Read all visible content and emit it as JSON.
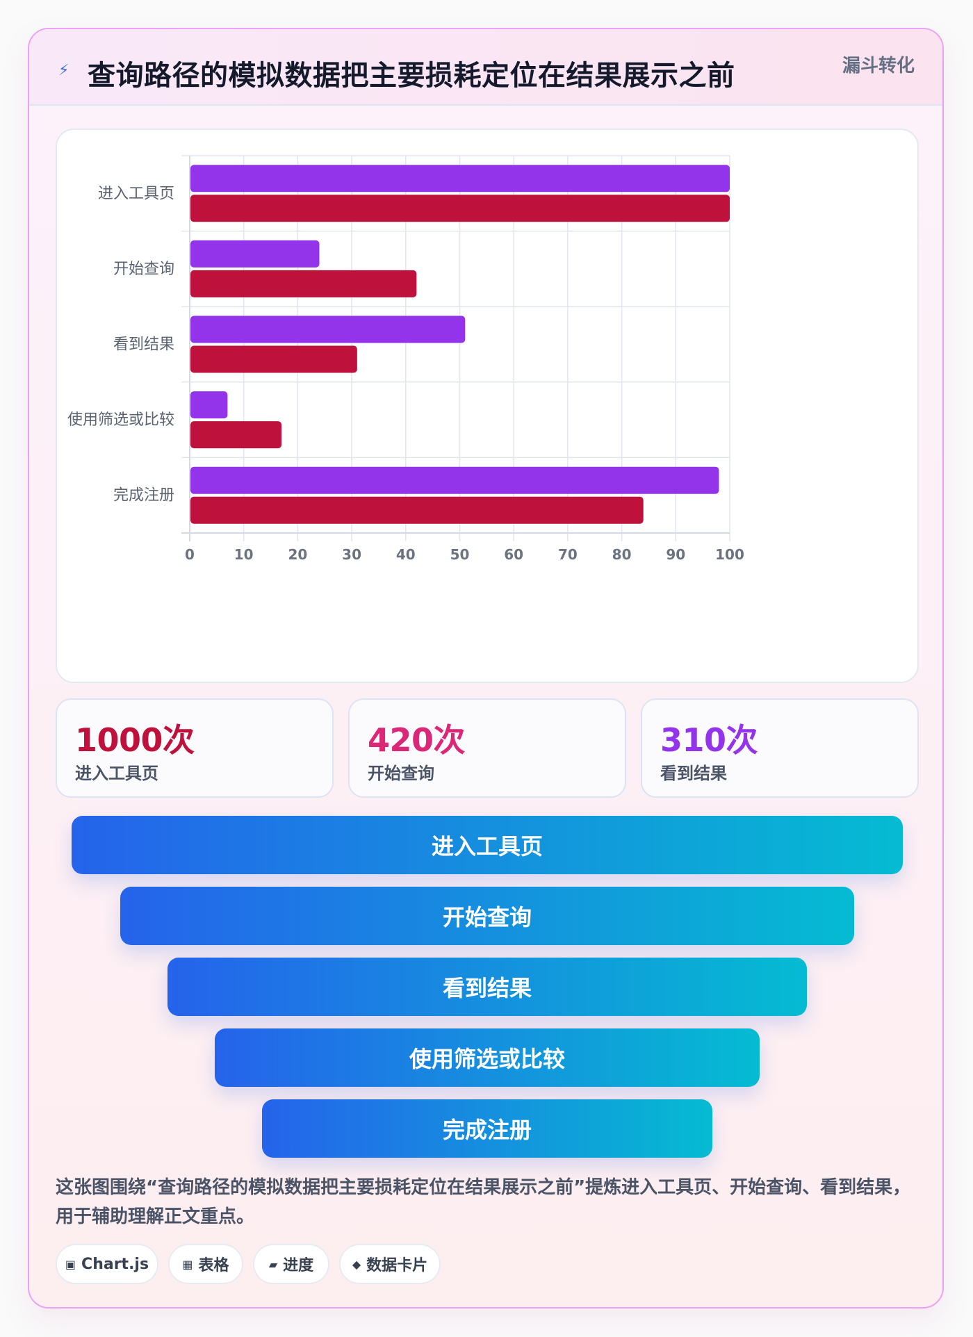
{
  "header": {
    "icon": "lightning-icon",
    "title": "查询路径的模拟数据把主要损耗定位在结果展示之前",
    "badge": "漏斗转化"
  },
  "chart_data": {
    "type": "bar",
    "orientation": "horizontal",
    "categories": [
      "进入工具页",
      "开始查询",
      "看到结果",
      "使用筛选或比较",
      "完成注册"
    ],
    "series": [
      {
        "values": [
          100,
          24,
          51,
          7,
          98
        ],
        "color": "#9333ea"
      },
      {
        "values": [
          100,
          42,
          31,
          17,
          84
        ],
        "color": "#be123c"
      }
    ],
    "xlim": [
      0,
      100
    ],
    "xticks": [
      0,
      10,
      20,
      30,
      40,
      50,
      60,
      70,
      80,
      90,
      100
    ],
    "grid": true
  },
  "kpis": [
    {
      "value": "1000次",
      "label": "进入工具页",
      "color": "#be123c"
    },
    {
      "value": "420次",
      "label": "开始查询",
      "color": "#db2777"
    },
    {
      "value": "310次",
      "label": "看到结果",
      "color": "#9333ea"
    }
  ],
  "funnel": [
    {
      "label": "进入工具页"
    },
    {
      "label": "开始查询"
    },
    {
      "label": "看到结果"
    },
    {
      "label": "使用筛选或比较"
    },
    {
      "label": "完成注册"
    }
  ],
  "description": "这张图围绕“查询路径的模拟数据把主要损耗定位在结果展示之前”提炼进入工具页、开始查询、看到结果，用于辅助理解正文重点。",
  "tags": [
    {
      "icon": "▣",
      "label": "Chart.js"
    },
    {
      "icon": "▦",
      "label": "表格"
    },
    {
      "icon": "▰",
      "label": "进度"
    },
    {
      "icon": "◆",
      "label": "数据卡片"
    }
  ]
}
